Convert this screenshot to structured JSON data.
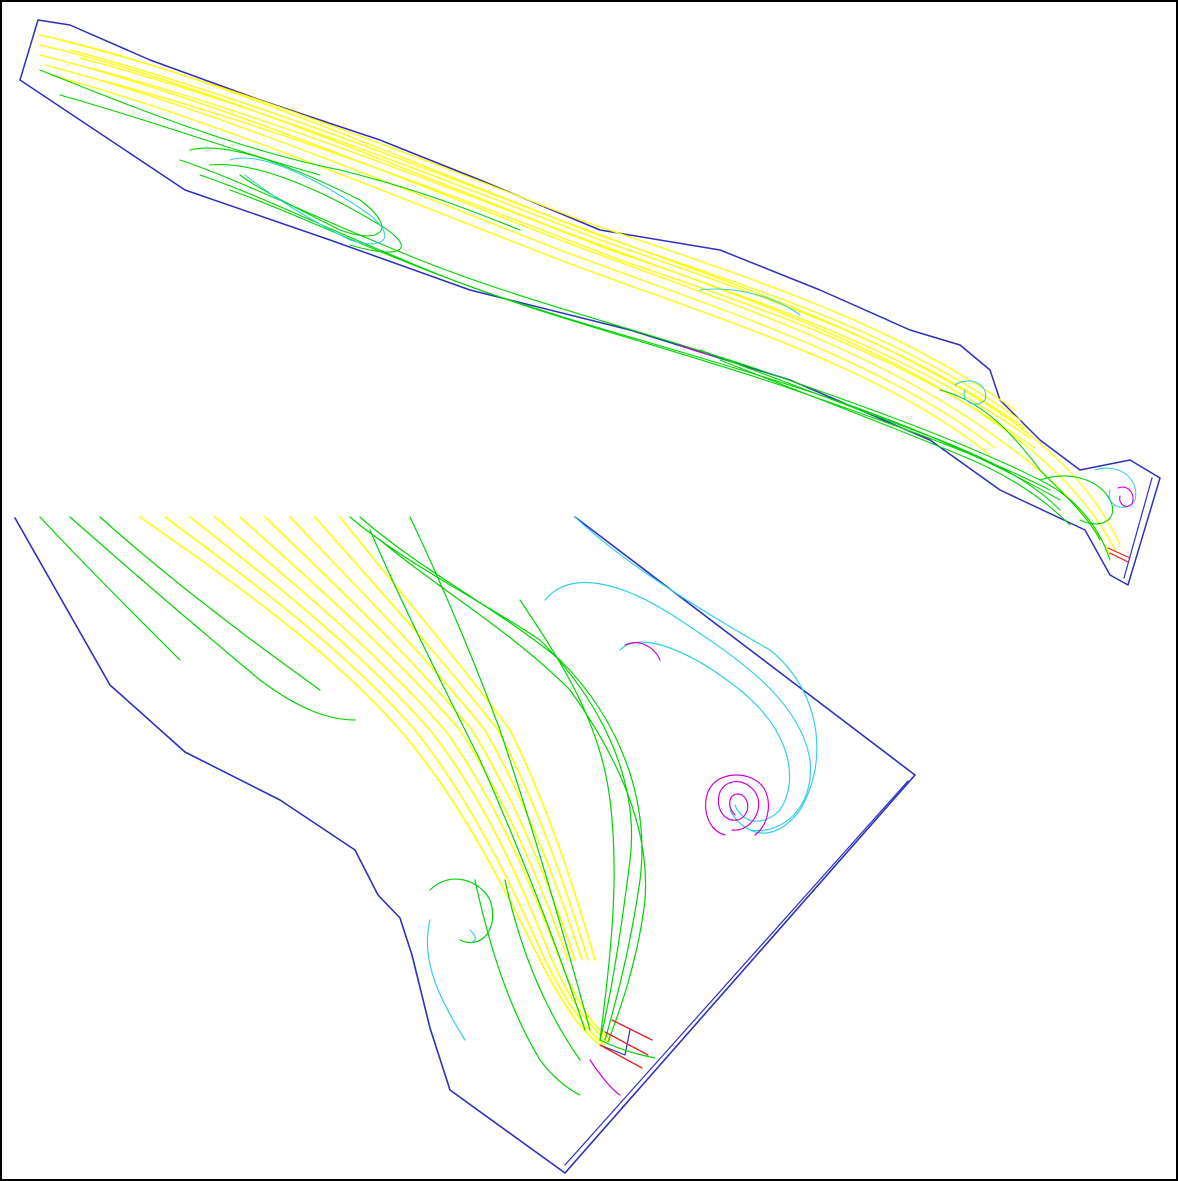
{
  "figure": {
    "title": "",
    "panels": [
      {
        "name": "overview",
        "description_label": ""
      },
      {
        "name": "outlet-detail",
        "description_label": ""
      }
    ],
    "colors": {
      "boundary": "#2f2fbf",
      "fast": "#ffff00",
      "medium": "#00d400",
      "slow": "#33cfe8",
      "vortex": "#d400d4",
      "jet": "#e02020"
    }
  }
}
